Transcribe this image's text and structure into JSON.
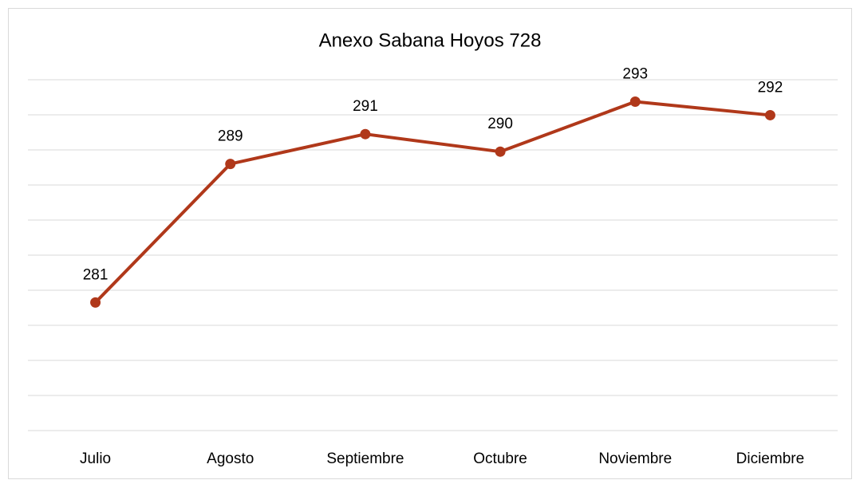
{
  "chart_data": {
    "type": "line",
    "title": "Anexo Sabana Hoyos 728",
    "categories": [
      "Julio",
      "Agosto",
      "Septiembre",
      "Octubre",
      "Noviembre",
      "Diciembre"
    ],
    "series": [
      {
        "name": "Anexo Sabana Hoyos 728",
        "color": "#b0381a",
        "values": [
          281.3,
          289.2,
          290.9,
          289.9,
          292.75,
          291.98
        ],
        "value_labels": [
          "281",
          "289",
          "291",
          "290",
          "293",
          "292"
        ]
      }
    ],
    "ylim": [
      274,
      294
    ],
    "yticks": [
      274,
      276,
      278,
      280,
      282,
      284,
      286,
      288,
      290,
      292,
      294
    ],
    "grid": true
  }
}
